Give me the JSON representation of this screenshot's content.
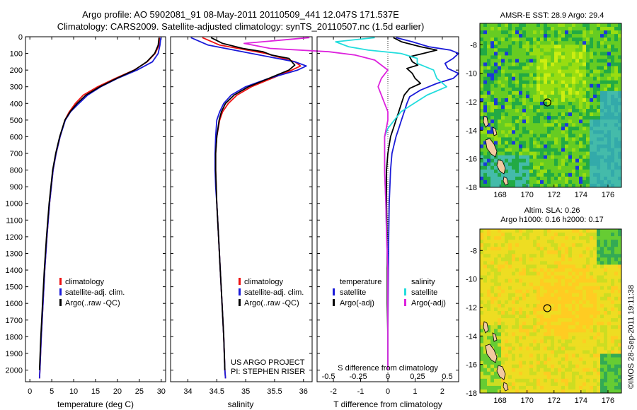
{
  "header": {
    "title_line1": "Argo profile: AO 5902081_91 08-May-2011 20110509_441 12.047S 171.537E",
    "title_line2": "Climatology: CARS2009. Satellite-adjusted climatology: synTS_20110507.nc (1.5d earlier)"
  },
  "colors": {
    "climatology": "#ee1111",
    "satellite": "#1a1ad8",
    "argo": "#000000",
    "satellite_salinity": "#22dddd",
    "argo_salinity": "#dd22dd"
  },
  "credits": {
    "project": "US ARGO PROJECT",
    "pi": "PI: STEPHEN RISER",
    "timestamp": "©IMOS 28-Sep-2011 19:11:38"
  },
  "chart_data": [
    {
      "id": "temperature",
      "type": "line",
      "xlabel": "temperature (deg C)",
      "ylabel": "",
      "xlim": [
        -1,
        31
      ],
      "xticks": [
        0,
        5,
        10,
        15,
        20,
        25,
        30
      ],
      "ylim": [
        2070,
        0
      ],
      "yticks": [
        0,
        100,
        200,
        300,
        400,
        500,
        600,
        700,
        800,
        900,
        1000,
        1100,
        1200,
        1300,
        1400,
        1500,
        1600,
        1700,
        1800,
        1900,
        2000
      ],
      "legend": [
        "climatology",
        "satellite-adj. clim.",
        "Argo(..raw -QC)"
      ],
      "series": [
        {
          "name": "climatology",
          "color": "#ee1111",
          "depth": [
            5,
            50,
            100,
            150,
            200,
            250,
            300,
            350,
            400,
            450,
            500,
            600,
            700,
            800,
            900,
            1000,
            1200,
            1400,
            1600,
            1800,
            2000,
            2050
          ],
          "values": [
            29.6,
            29.5,
            28.6,
            26.8,
            23.8,
            19.5,
            15.5,
            12.2,
            10.4,
            9.0,
            8.0,
            6.9,
            6.0,
            5.3,
            4.9,
            4.5,
            3.9,
            3.4,
            3.0,
            2.6,
            2.3,
            2.2
          ]
        },
        {
          "name": "satellite-adj. clim.",
          "color": "#1a1ad8",
          "depth": [
            5,
            50,
            100,
            150,
            200,
            250,
            300,
            350,
            400,
            450,
            500,
            600,
            700,
            800,
            900,
            1000,
            1200,
            1400,
            1600,
            1800,
            2000,
            2050
          ],
          "values": [
            29.9,
            29.7,
            29.3,
            28.0,
            24.5,
            20.0,
            16.2,
            13.2,
            11.2,
            9.3,
            8.1,
            6.9,
            6.0,
            5.3,
            4.9,
            4.5,
            3.9,
            3.4,
            3.0,
            2.6,
            2.3,
            2.2
          ]
        },
        {
          "name": "Argo(..raw -QC)",
          "color": "#000000",
          "depth": [
            5,
            50,
            100,
            150,
            200,
            250,
            300,
            350,
            400,
            450,
            500,
            600,
            700,
            800,
            900,
            1000,
            1200,
            1400,
            1600,
            1800,
            2000
          ],
          "values": [
            29.5,
            29.3,
            28.5,
            26.7,
            23.9,
            19.8,
            16.0,
            12.8,
            10.8,
            9.2,
            8.0,
            6.8,
            5.9,
            5.2,
            4.8,
            4.4,
            3.8,
            3.3,
            2.9,
            2.5,
            2.2
          ]
        }
      ]
    },
    {
      "id": "salinity",
      "type": "line",
      "xlabel": "salinity",
      "ylabel": "",
      "xlim": [
        33.7,
        36.15
      ],
      "xticks": [
        34,
        34.5,
        35,
        35.5,
        36
      ],
      "xtick_labels": [
        "34",
        "34.5",
        "35",
        "35.5",
        "36"
      ],
      "ylim": [
        2070,
        0
      ],
      "legend": [
        "climatology",
        "satellite-adj. clim.",
        "Argo(..raw -QC)"
      ],
      "series": [
        {
          "name": "climatology",
          "color": "#ee1111",
          "depth": [
            5,
            50,
            100,
            150,
            175,
            200,
            250,
            300,
            350,
            400,
            450,
            500,
            600,
            700,
            800,
            900,
            1000,
            1200,
            1400,
            1600,
            1800,
            2000,
            2050
          ],
          "values": [
            34.25,
            34.55,
            35.35,
            35.85,
            35.95,
            35.8,
            35.45,
            35.1,
            34.85,
            34.7,
            34.6,
            34.55,
            34.5,
            34.48,
            34.48,
            34.49,
            34.5,
            34.53,
            34.56,
            34.59,
            34.62,
            34.64,
            34.65
          ]
        },
        {
          "name": "satellite-adj. clim.",
          "color": "#1a1ad8",
          "depth": [
            5,
            50,
            100,
            150,
            175,
            200,
            250,
            300,
            350,
            400,
            450,
            500,
            600,
            700,
            800,
            900,
            1000,
            1200,
            1400,
            1600,
            1800,
            2000,
            2050
          ],
          "values": [
            34.05,
            34.35,
            35.1,
            35.85,
            36.05,
            35.9,
            35.4,
            35.0,
            34.75,
            34.62,
            34.55,
            34.5,
            34.48,
            34.47,
            34.47,
            34.48,
            34.5,
            34.53,
            34.56,
            34.59,
            34.62,
            34.64,
            34.65
          ]
        },
        {
          "name": "Argo(..raw -QC)",
          "color": "#000000",
          "depth": [
            5,
            40,
            70,
            90,
            110,
            130,
            150,
            170,
            200,
            250,
            300,
            350,
            400,
            450,
            500,
            600,
            700,
            800,
            900,
            1000,
            1200,
            1400,
            1600,
            1800,
            2000
          ],
          "values": [
            34.4,
            34.6,
            34.95,
            35.3,
            35.45,
            35.75,
            35.8,
            35.85,
            35.75,
            35.4,
            35.05,
            34.8,
            34.65,
            34.58,
            34.54,
            34.5,
            34.48,
            34.48,
            34.49,
            34.5,
            34.53,
            34.56,
            34.59,
            34.62,
            34.64
          ]
        }
      ]
    },
    {
      "id": "difference",
      "type": "line",
      "xlabel": "T difference from climatology",
      "x2label": "S difference from climatology",
      "xlim": [
        -2.6,
        2.6
      ],
      "xticks": [
        -2,
        -1,
        0,
        1,
        2
      ],
      "x2ticks": [
        -0.5,
        -0.25,
        0,
        0.25,
        0.5
      ],
      "x2tick_labels": [
        "-0.5",
        "-0.25",
        "0",
        "0.25",
        "0.5"
      ],
      "ylim": [
        2070,
        0
      ],
      "legend_temperature_title": "temperature",
      "legend_salinity_title": "salinity",
      "legend_temperature": [
        "satellite",
        "Argo(-adj)"
      ],
      "legend_salinity": [
        "satellite",
        "Argo(-adj)"
      ],
      "series": [
        {
          "name": "satellite",
          "group": "temperature",
          "color": "#1a1ad8",
          "depth": [
            5,
            30,
            60,
            80,
            100,
            130,
            160,
            190,
            220,
            250,
            280,
            320,
            360,
            400,
            450,
            500,
            550,
            600,
            700,
            800,
            1000,
            1200,
            1400,
            1600,
            1800,
            2000
          ],
          "values": [
            0.3,
            0.9,
            1.5,
            2.3,
            2.6,
            2.4,
            2.1,
            2.2,
            2.6,
            2.4,
            1.8,
            1.2,
            0.8,
            0.7,
            0.6,
            0.5,
            0.4,
            0.3,
            0.15,
            0.1,
            0.05,
            0.03,
            0.02,
            0.01,
            0.0,
            0.0
          ]
        },
        {
          "name": "Argo(-adj)",
          "group": "temperature",
          "color": "#000000",
          "depth": [
            5,
            30,
            60,
            80,
            100,
            120,
            150,
            170,
            190,
            220,
            250,
            280,
            310,
            350,
            400,
            450,
            500,
            550,
            600,
            700,
            800,
            1000,
            1200,
            1400,
            1600,
            1800,
            2000
          ],
          "values": [
            0.2,
            0.5,
            1.2,
            1.8,
            1.3,
            0.8,
            0.9,
            1.1,
            0.7,
            0.9,
            1.0,
            1.2,
            0.8,
            0.6,
            0.5,
            0.4,
            0.3,
            0.2,
            0.1,
            0.0,
            -0.05,
            -0.05,
            -0.03,
            -0.02,
            -0.02,
            0.0,
            0.0
          ]
        },
        {
          "name": "satellite",
          "group": "salinity",
          "color": "#22dddd",
          "depth": [
            5,
            30,
            60,
            80,
            100,
            130,
            160,
            200,
            250,
            300,
            350,
            400,
            450,
            500,
            550,
            600,
            700,
            800,
            1000,
            1200,
            1400,
            1600,
            1800,
            2000
          ],
          "values": [
            -0.2,
            -0.8,
            -0.6,
            -0.3,
            0.2,
            0.45,
            0.45,
            0.7,
            0.75,
            0.9,
            0.6,
            0.4,
            0.2,
            0.1,
            0.0,
            -0.05,
            -0.05,
            -0.05,
            -0.03,
            -0.02,
            0.0,
            0.0,
            0.0,
            0.0
          ]
        },
        {
          "name": "Argo(-adj)",
          "group": "salinity",
          "color": "#dd22dd",
          "depth": [
            5,
            40,
            70,
            90,
            110,
            140,
            170,
            200,
            250,
            300,
            350,
            400,
            450,
            500,
            600,
            700,
            800,
            1000,
            1200,
            1400,
            1600,
            1800,
            2000
          ],
          "values": [
            -1.2,
            -2.2,
            -1.8,
            -0.9,
            -0.5,
            -0.2,
            -0.1,
            0.0,
            -0.1,
            -0.15,
            -0.1,
            -0.05,
            0.0,
            0.0,
            -0.05,
            -0.05,
            -0.05,
            -0.03,
            -0.02,
            0.0,
            0.0,
            0.0,
            0.0
          ]
        }
      ]
    },
    {
      "id": "sst_map",
      "type": "heatmap",
      "title": "AMSR-E SST: 28.9 Argo: 29.4",
      "xlim": [
        166.5,
        177
      ],
      "ylim": [
        -18,
        -6.5
      ],
      "xticks": [
        168,
        170,
        172,
        174,
        176
      ],
      "yticks": [
        -8,
        -10,
        -12,
        -14,
        -16,
        -18
      ],
      "marker": {
        "lon": 171.5,
        "lat": -12.05
      },
      "palette": [
        "#22aa44",
        "#66cc22",
        "#99dd11",
        "#ccee11",
        "#44bbaa",
        "#33aaaa"
      ]
    },
    {
      "id": "sla_map",
      "type": "heatmap",
      "title": "Altim. SLA: 0.26",
      "subtitle": "Argo h1000: 0.16 h2000: 0.17",
      "xlim": [
        166.5,
        177
      ],
      "ylim": [
        -18,
        -6.5
      ],
      "xticks": [
        168,
        170,
        172,
        174,
        176
      ],
      "yticks": [
        -8,
        -10,
        -12,
        -14,
        -16,
        -18
      ],
      "marker": {
        "lon": 171.5,
        "lat": -12.05
      },
      "palette": [
        "#eedd22",
        "#ffcc22",
        "#ccdd22",
        "#66cc33",
        "#33aa55"
      ]
    }
  ]
}
